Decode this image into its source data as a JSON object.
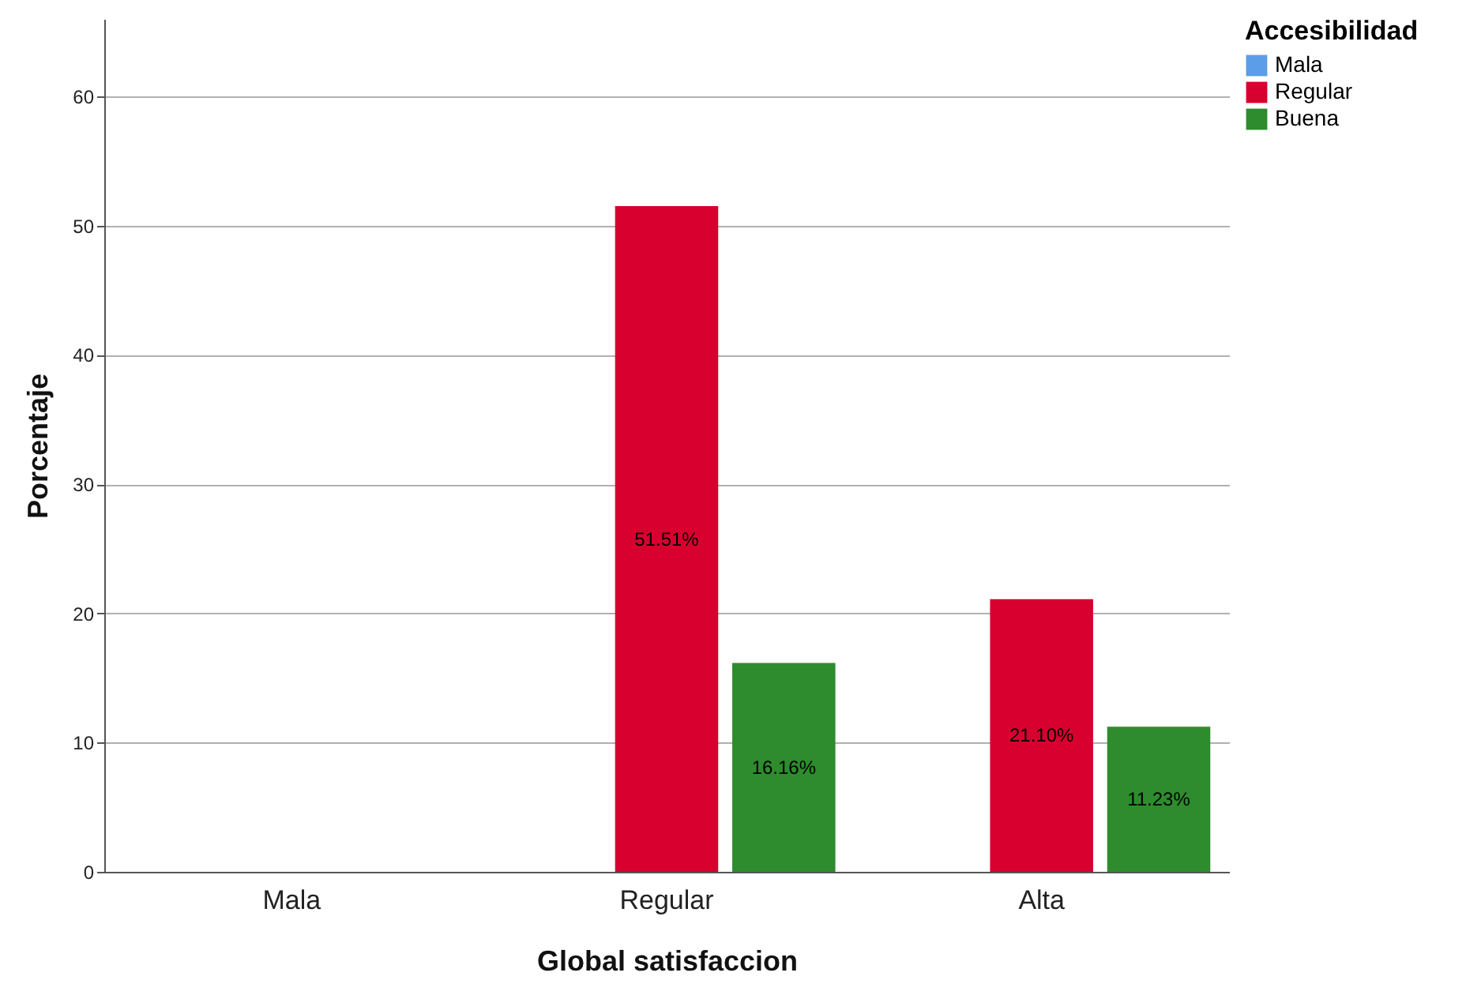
{
  "chart_data": {
    "type": "bar",
    "xlabel": "Global satisfaccion",
    "ylabel": "Porcentaje",
    "legend_title": "Accesibilidad",
    "categories": [
      "Mala",
      "Regular",
      "Alta"
    ],
    "series": [
      {
        "name": "Mala",
        "color": "#5b9de8",
        "values": [
          null,
          null,
          null
        ],
        "value_labels": [
          null,
          null,
          null
        ]
      },
      {
        "name": "Regular",
        "color": "#d7002f",
        "values": [
          null,
          51.51,
          21.1
        ],
        "value_labels": [
          null,
          "51.51%",
          "21.10%"
        ]
      },
      {
        "name": "Buena",
        "color": "#2e8b2e",
        "values": [
          null,
          16.16,
          11.23
        ],
        "value_labels": [
          null,
          "16.16%",
          "11.23%"
        ]
      }
    ],
    "ylim": [
      0,
      66
    ],
    "yticks": [
      0,
      10,
      20,
      30,
      40,
      50,
      60
    ],
    "grid": "y",
    "legend": "top right"
  }
}
